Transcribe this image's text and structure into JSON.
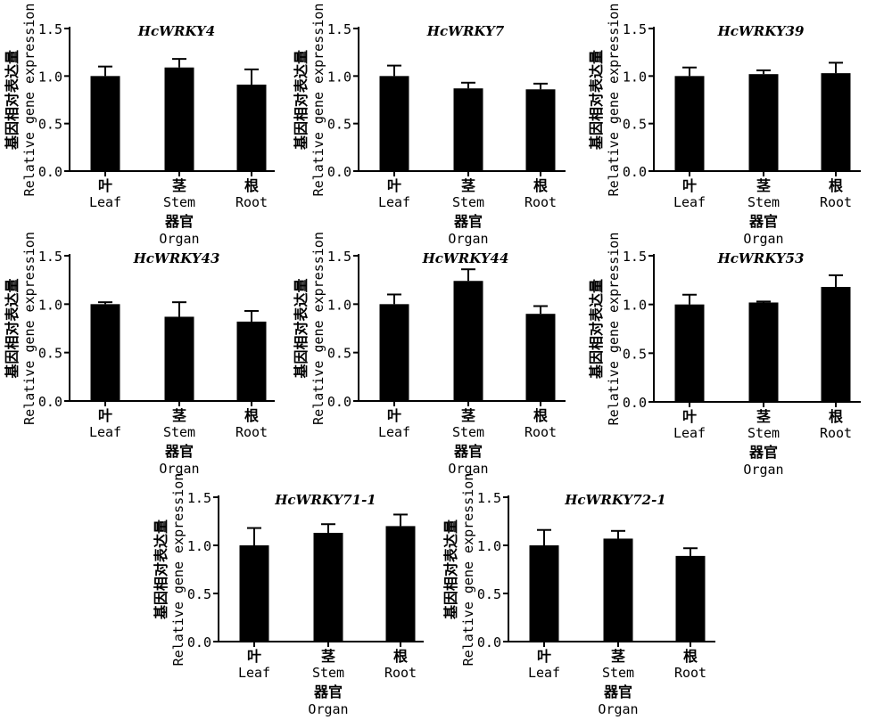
{
  "chart_data": [
    {
      "type": "bar",
      "title": "HcWRKY4",
      "ylabel_cn": "基因相对表达量",
      "ylabel": "Relative gene expression",
      "xlabel_cn": "器官",
      "xlabel": "Organ",
      "categories": [
        {
          "cn": "叶",
          "en": "Leaf"
        },
        {
          "cn": "茎",
          "en": "Stem"
        },
        {
          "cn": "根",
          "en": "Root"
        }
      ],
      "values": [
        1.0,
        1.09,
        0.91
      ],
      "errors": [
        0.1,
        0.09,
        0.16
      ],
      "ylim": [
        0,
        1.5
      ],
      "yticks": [
        "0.0",
        "0.5",
        "1.0",
        "1.5"
      ]
    },
    {
      "type": "bar",
      "title": "HcWRKY7",
      "ylabel_cn": "基因相对表达量",
      "ylabel": "Relative gene expression",
      "xlabel_cn": "器官",
      "xlabel": "Organ",
      "categories": [
        {
          "cn": "叶",
          "en": "Leaf"
        },
        {
          "cn": "茎",
          "en": "Stem"
        },
        {
          "cn": "根",
          "en": "Root"
        }
      ],
      "values": [
        1.0,
        0.87,
        0.86
      ],
      "errors": [
        0.11,
        0.06,
        0.06
      ],
      "ylim": [
        0,
        1.5
      ],
      "yticks": [
        "0.0",
        "0.5",
        "1.0",
        "1.5"
      ]
    },
    {
      "type": "bar",
      "title": "HcWRKY39",
      "ylabel_cn": "基因相对表达量",
      "ylabel": "Relative gene expression",
      "xlabel_cn": "器官",
      "xlabel": "Organ",
      "categories": [
        {
          "cn": "叶",
          "en": "Leaf"
        },
        {
          "cn": "茎",
          "en": "Stem"
        },
        {
          "cn": "根",
          "en": "Root"
        }
      ],
      "values": [
        1.0,
        1.02,
        1.03
      ],
      "errors": [
        0.09,
        0.04,
        0.11
      ],
      "ylim": [
        0,
        1.5
      ],
      "yticks": [
        "0.0",
        "0.5",
        "1.0",
        "1.5"
      ]
    },
    {
      "type": "bar",
      "title": "HcWRKY43",
      "ylabel_cn": "基因相对表达量",
      "ylabel": "Relative gene expression",
      "xlabel_cn": "器官",
      "xlabel": "Organ",
      "categories": [
        {
          "cn": "叶",
          "en": "Leaf"
        },
        {
          "cn": "茎",
          "en": "Stem"
        },
        {
          "cn": "根",
          "en": "Root"
        }
      ],
      "values": [
        1.0,
        0.87,
        0.82
      ],
      "errors": [
        0.02,
        0.15,
        0.11
      ],
      "ylim": [
        0,
        1.5
      ],
      "yticks": [
        "0.0",
        "0.5",
        "1.0",
        "1.5"
      ]
    },
    {
      "type": "bar",
      "title": "HcWRKY44",
      "ylabel_cn": "基因相对表达量",
      "ylabel": "Relative gene expression",
      "xlabel_cn": "器官",
      "xlabel": "Organ",
      "categories": [
        {
          "cn": "叶",
          "en": "Leaf"
        },
        {
          "cn": "茎",
          "en": "Stem"
        },
        {
          "cn": "根",
          "en": "Root"
        }
      ],
      "values": [
        1.0,
        1.24,
        0.9
      ],
      "errors": [
        0.1,
        0.12,
        0.08
      ],
      "ylim": [
        0,
        1.5
      ],
      "yticks": [
        "0.0",
        "0.5",
        "1.0",
        "1.5"
      ]
    },
    {
      "type": "bar",
      "title": "HcWRKY53",
      "ylabel_cn": "基因相对表达量",
      "ylabel": "Relative gene expression",
      "xlabel_cn": "器官",
      "xlabel": "Organ",
      "categories": [
        {
          "cn": "叶",
          "en": "Leaf"
        },
        {
          "cn": "茎",
          "en": "Stem"
        },
        {
          "cn": "根",
          "en": "Root"
        }
      ],
      "values": [
        1.0,
        1.02,
        1.18
      ],
      "errors": [
        0.1,
        0.01,
        0.12
      ],
      "ylim": [
        0,
        1.5
      ],
      "yticks": [
        "0.0",
        "0.5",
        "1.0",
        "1.5"
      ]
    },
    {
      "type": "bar",
      "title": "HcWRKY71-1",
      "ylabel_cn": "基因相对表达量",
      "ylabel": "Relative gene expression",
      "xlabel_cn": "器官",
      "xlabel": "Organ",
      "categories": [
        {
          "cn": "叶",
          "en": "Leaf"
        },
        {
          "cn": "茎",
          "en": "Stem"
        },
        {
          "cn": "根",
          "en": "Root"
        }
      ],
      "values": [
        1.0,
        1.13,
        1.2
      ],
      "errors": [
        0.18,
        0.09,
        0.12
      ],
      "ylim": [
        0,
        1.5
      ],
      "yticks": [
        "0.0",
        "0.5",
        "1.0",
        "1.5"
      ]
    },
    {
      "type": "bar",
      "title": "HcWRKY72-1",
      "ylabel_cn": "基因相对表达量",
      "ylabel": "Relative gene expression",
      "xlabel_cn": "器官",
      "xlabel": "Organ",
      "categories": [
        {
          "cn": "叶",
          "en": "Leaf"
        },
        {
          "cn": "茎",
          "en": "Stem"
        },
        {
          "cn": "根",
          "en": "Root"
        }
      ],
      "values": [
        1.0,
        1.07,
        0.89
      ],
      "errors": [
        0.16,
        0.08,
        0.08
      ],
      "ylim": [
        0,
        1.5
      ],
      "yticks": [
        "0.0",
        "0.5",
        "1.0",
        "1.5"
      ]
    }
  ]
}
